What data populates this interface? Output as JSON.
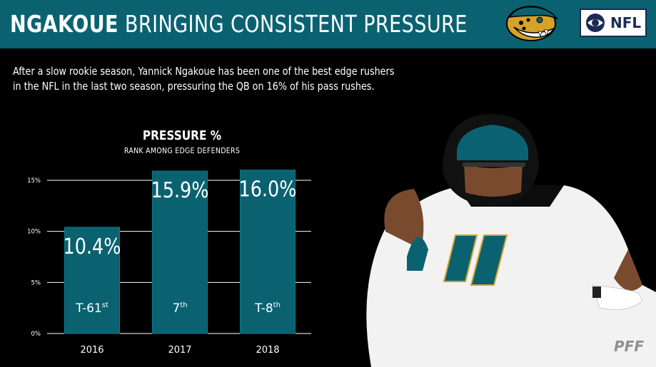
{
  "header": {
    "title_strong": "NGAKOUE",
    "title_light": "BRINGING CONSISTENT PRESSURE",
    "network_label": "NFL"
  },
  "subtitle_line1": "After a slow rookie season, Yannick Ngakoue has been one of the best edge rushers",
  "subtitle_line2": "in the NFL in the last two season, pressuring the QB on 16% of his pass rushes.",
  "footer": {
    "brand": "PFF"
  },
  "colors": {
    "header_bg": "#0a6271",
    "bar": "#0a6271",
    "background": "#000000",
    "text": "#ffffff",
    "network_navy": "#1d2a55"
  },
  "chart_data": {
    "type": "bar",
    "title": "PRESSURE %",
    "subtitle": "RANK AMONG EDGE DEFENDERS",
    "categories": [
      "2016",
      "2017",
      "2018"
    ],
    "values": [
      10.4,
      15.9,
      16.0
    ],
    "value_labels": [
      "10.4%",
      "15.9%",
      "16.0%"
    ],
    "rank_labels": [
      {
        "main": "T-61",
        "sup": "st"
      },
      {
        "main": "7",
        "sup": "th"
      },
      {
        "main": "T-8",
        "sup": "th"
      }
    ],
    "yticks": [
      0,
      5,
      10,
      15
    ],
    "ytick_labels": [
      "0%",
      "5%",
      "10%",
      "15%"
    ],
    "ylim": [
      0,
      15
    ],
    "grid": true,
    "legend": "none"
  }
}
